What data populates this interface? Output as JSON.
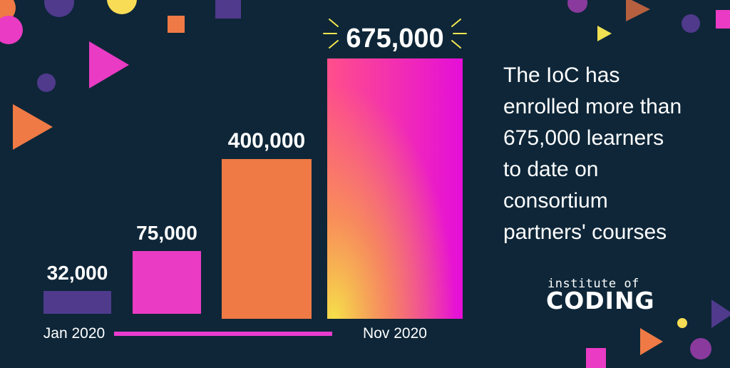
{
  "chart_data": {
    "type": "bar",
    "categories": [
      "Jan 2020",
      "",
      "",
      "Nov 2020"
    ],
    "values": [
      32000,
      75000,
      400000,
      675000
    ],
    "value_labels": [
      "32,000",
      "75,000",
      "400,000",
      "675,000"
    ],
    "xlabel_start": "Jan 2020",
    "xlabel_end": "Nov 2020",
    "title": "",
    "xlabel": "",
    "ylabel": "",
    "grid": false,
    "legend": "none"
  },
  "colors": {
    "background": "#0e2638",
    "bar1": "#4f3a8c",
    "bar2": "#ea3bc4",
    "bar3": "#ef7a45",
    "bar4_top_left": "#ff4f8a",
    "bar4_top_right": "#e50fd8",
    "bar4_bottom": "#f6e04a",
    "timeline": "#e93ccf",
    "burst": "#f3e64e"
  },
  "headline": {
    "lines": [
      "The IoC has",
      "enrolled more than",
      "675,000 learners",
      "to date on",
      "consortium",
      "partners' courses"
    ]
  },
  "logo": {
    "small": "institute of",
    "big": "CODING"
  }
}
